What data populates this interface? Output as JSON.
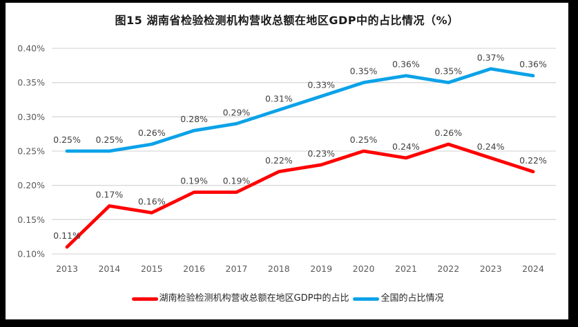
{
  "title": "图15 湖南省检验检测机构营收总额在地区GDP中的占比情况（%）",
  "theme": {
    "frame_color": "#000000",
    "background": "#FFFFFF",
    "grid_color": "#D9D9D9",
    "axis_tick_color": "#595959",
    "data_label_color": "#404040",
    "title_color": "#1A1A1A",
    "hunan_line_color": "#FE0000",
    "national_line_color": "#0BA2E8"
  },
  "chart_data": {
    "type": "line",
    "title": "图15 湖南省检验检测机构营收总额在地区GDP中的占比情况（%）",
    "xlabel": "",
    "ylabel": "",
    "categories": [
      "2013",
      "2014",
      "2015",
      "2016",
      "2017",
      "2018",
      "2019",
      "2020",
      "2021",
      "2022",
      "2023",
      "2024"
    ],
    "series": [
      {
        "name": "湖南检验检测机构营收总额在地区GDP中的占比",
        "color": "#FE0000",
        "values": [
          0.11,
          0.17,
          0.16,
          0.19,
          0.19,
          0.22,
          0.23,
          0.25,
          0.24,
          0.26,
          0.24,
          0.22
        ],
        "labels": [
          "0.11%",
          "0.17%",
          "0.16%",
          "0.19%",
          "0.19%",
          "0.22%",
          "0.23%",
          "0.25%",
          "0.24%",
          "0.26%",
          "0.24%",
          "0.22%"
        ]
      },
      {
        "name": "全国的占比情况",
        "color": "#0BA2E8",
        "values": [
          0.25,
          0.25,
          0.26,
          0.28,
          0.29,
          0.31,
          0.33,
          0.35,
          0.36,
          0.35,
          0.37,
          0.36
        ],
        "labels": [
          "0.25%",
          "0.25%",
          "0.26%",
          "0.28%",
          "0.29%",
          "0.31%",
          "0.33%",
          "0.35%",
          "0.36%",
          "0.35%",
          "0.37%",
          "0.36%"
        ]
      }
    ],
    "ylim": [
      0.1,
      0.4
    ],
    "yticks": [
      {
        "value": 0.1,
        "label": "0.10%"
      },
      {
        "value": 0.15,
        "label": "0.15%"
      },
      {
        "value": 0.2,
        "label": "0.20%"
      },
      {
        "value": 0.25,
        "label": "0.25%"
      },
      {
        "value": 0.3,
        "label": "0.30%"
      },
      {
        "value": 0.35,
        "label": "0.35%"
      },
      {
        "value": 0.4,
        "label": "0.40%"
      }
    ],
    "grid": true,
    "legend_position": "bottom"
  }
}
